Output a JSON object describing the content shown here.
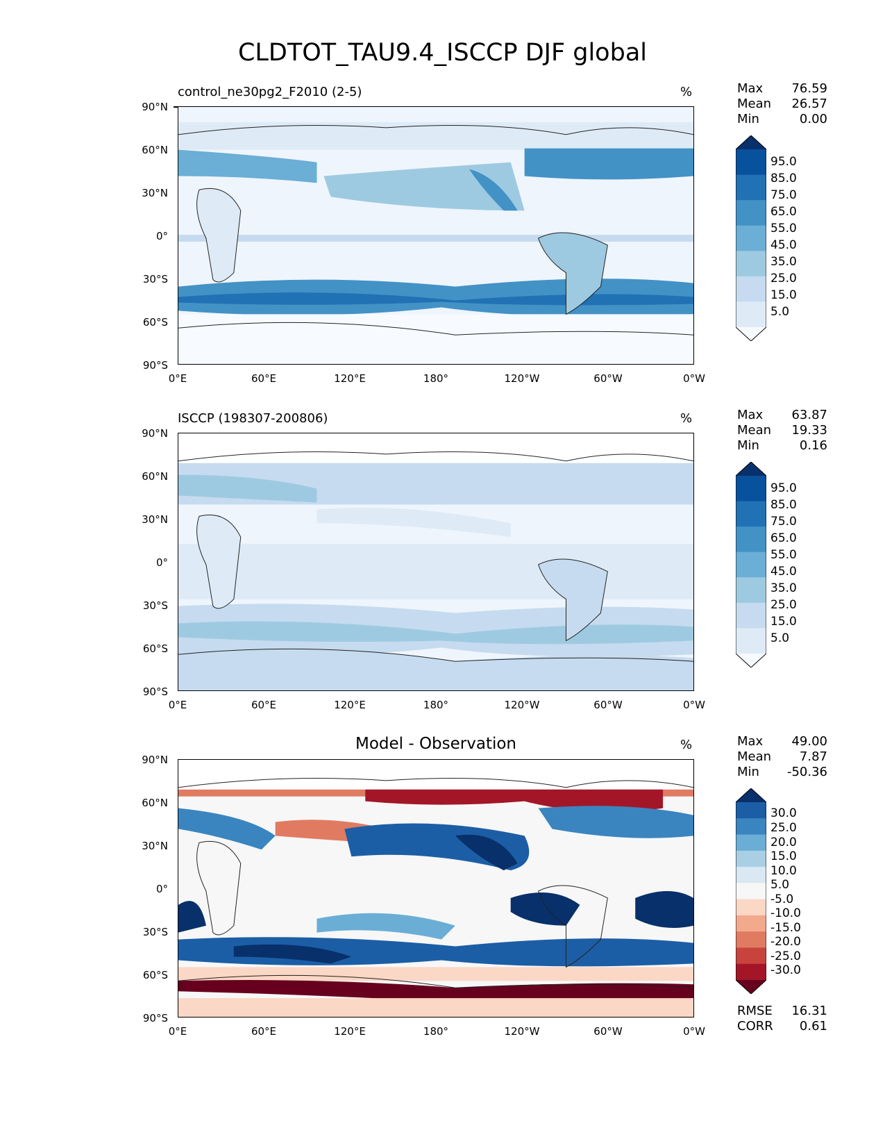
{
  "title": "CLDTOT_TAU9.4_ISCCP DJF global",
  "lat_ticks": [
    "90°N",
    "60°N",
    "30°N",
    "0°",
    "30°S",
    "60°S",
    "90°S"
  ],
  "lon_ticks": [
    "0°E",
    "60°E",
    "120°E",
    "180°",
    "120°W",
    "60°W",
    "0°W"
  ],
  "panels": [
    {
      "name": "control_ne30pg2_F2010 (2-5)",
      "units": "%",
      "stats": {
        "max_label": "Max",
        "max": "76.59",
        "mean_label": "Mean",
        "mean": "26.57",
        "min_label": "Min",
        "min": "0.00"
      },
      "colorbar_labels": [
        "95.0",
        "85.0",
        "75.0",
        "65.0",
        "55.0",
        "45.0",
        "35.0",
        "25.0",
        "15.0",
        "5.0"
      ],
      "colors": [
        "#08306b",
        "#08519c",
        "#2171b5",
        "#4292c6",
        "#6baed6",
        "#9ecae1",
        "#c6dbef",
        "#deebf7",
        "#f7fbff"
      ]
    },
    {
      "name": "ISCCP (198307-200806)",
      "units": "%",
      "stats": {
        "max_label": "Max",
        "max": "63.87",
        "mean_label": "Mean",
        "mean": "19.33",
        "min_label": "Min",
        "min": "0.16"
      },
      "colorbar_labels": [
        "95.0",
        "85.0",
        "75.0",
        "65.0",
        "55.0",
        "45.0",
        "35.0",
        "25.0",
        "15.0",
        "5.0"
      ],
      "colors": [
        "#08306b",
        "#08519c",
        "#2171b5",
        "#4292c6",
        "#6baed6",
        "#9ecae1",
        "#c6dbef",
        "#deebf7",
        "#f7fbff"
      ]
    },
    {
      "name": "Model - Observation",
      "units": "%",
      "stats": {
        "max_label": "Max",
        "max": "49.00",
        "mean_label": "Mean",
        "mean": "7.87",
        "min_label": "Min",
        "min": "-50.36"
      },
      "colorbar_labels": [
        "30.0",
        "25.0",
        "20.0",
        "15.0",
        "10.0",
        "5.0",
        "-5.0",
        "-10.0",
        "-15.0",
        "-20.0",
        "-25.0",
        "-30.0"
      ],
      "colors": [
        "#08306b",
        "#1c5ea6",
        "#3a85c0",
        "#6aaed6",
        "#a9cfe5",
        "#d9e8f3",
        "#f7f7f7",
        "#fbd7c5",
        "#f3a98c",
        "#e07b62",
        "#c8433e",
        "#a31628",
        "#67001f"
      ],
      "footer": {
        "rmse_label": "RMSE",
        "rmse": "16.31",
        "corr_label": "CORR",
        "corr": "0.61"
      }
    }
  ]
}
